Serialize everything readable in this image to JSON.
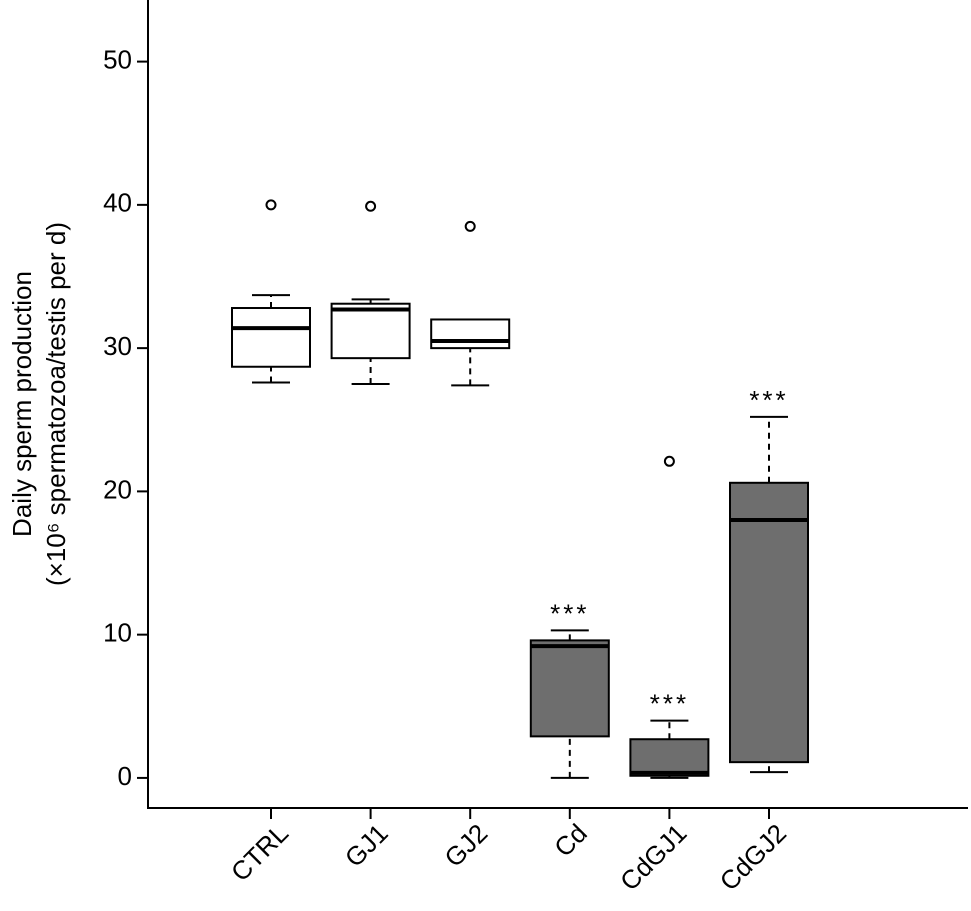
{
  "chart_data": {
    "type": "box",
    "y_label": [
      "Daily sperm production",
      "(×10⁶ spermatozoa/testis per d)"
    ],
    "categories": [
      "CTRL",
      "GJ1",
      "GJ2",
      "Cd",
      "CdGJ1",
      "CdGJ2"
    ],
    "colors": [
      "#ffffff",
      "#ffffff",
      "#ffffff",
      "#6e6e6e",
      "#6e6e6e",
      "#6e6e6e"
    ],
    "boxes": [
      {
        "whisker_low": 27.6,
        "q1": 28.7,
        "median": 31.4,
        "q3": 32.8,
        "whisker_high": 33.7,
        "outliers": [
          40.0
        ]
      },
      {
        "whisker_low": 27.5,
        "q1": 29.3,
        "median": 32.7,
        "q3": 33.1,
        "whisker_high": 33.4,
        "outliers": [
          39.9
        ]
      },
      {
        "whisker_low": 27.4,
        "q1": 30.0,
        "median": 30.5,
        "q3": 32.0,
        "whisker_high": 32.0,
        "outliers": [
          38.5
        ]
      },
      {
        "whisker_low": 0,
        "q1": 2.9,
        "median": 9.2,
        "q3": 9.6,
        "whisker_high": 10.3,
        "outliers": []
      },
      {
        "whisker_low": 0,
        "q1": 0.15,
        "median": 0.35,
        "q3": 2.7,
        "whisker_high": 4.0,
        "outliers": [
          22.1
        ]
      },
      {
        "whisker_low": 0.4,
        "q1": 1.1,
        "median": 18.0,
        "q3": 20.6,
        "whisker_high": 25.2,
        "outliers": []
      }
    ],
    "annotations": [
      null,
      null,
      null,
      "***",
      "***",
      "***"
    ],
    "ylim": [
      -2.1,
      54.3
    ],
    "yticks": [
      0,
      10,
      20,
      30,
      40,
      50
    ]
  }
}
